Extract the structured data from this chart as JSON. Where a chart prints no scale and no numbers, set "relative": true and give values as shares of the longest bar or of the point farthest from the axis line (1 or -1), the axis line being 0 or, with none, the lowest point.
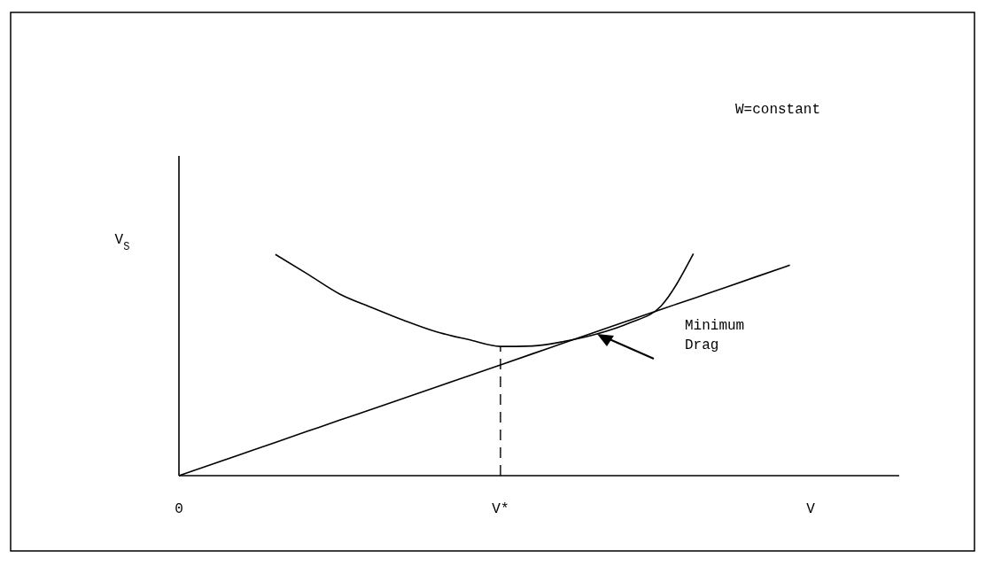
{
  "chart_data": {
    "type": "line",
    "relative": true,
    "xlabel": "V",
    "ylabel": "V$_{S}$",
    "categories": [
      "0",
      null,
      null,
      null,
      null,
      null,
      null,
      null,
      null,
      null,
      "V*",
      null,
      null,
      null,
      null,
      null,
      null,
      null,
      null,
      null,
      null,
      null,
      null
    ],
    "tick_labels": "x",
    "grid": false,
    "marker": "none",
    "series": [
      {
        "color": "#000000",
        "values": [
          null,
          null,
          null,
          0.996,
          0.908,
          0.818,
          0.757,
          0.699,
          0.648,
          0.613,
          0.582,
          0.584,
          0.605,
          0.638,
          0.687,
          0.765,
          1,
          null,
          null,
          null,
          null,
          null,
          null
        ]
      },
      {
        "color": "#000000",
        "values": [
          0,
          0.05,
          0.1,
          0.15,
          0.2,
          0.25,
          0.299,
          0.349,
          0.399,
          0.449,
          0.499,
          0.549,
          0.599,
          0.649,
          0.699,
          0.749,
          0.798,
          0.848,
          0.898,
          0.948,
          null,
          null,
          null
        ]
      }
    ],
    "ref_lines": [
      {
        "axis": "x",
        "value": "V*",
        "line_style": "dashed",
        "color": "#000000"
      }
    ],
    "annotations": [
      "W=constant",
      "Minimum Drag"
    ]
  }
}
